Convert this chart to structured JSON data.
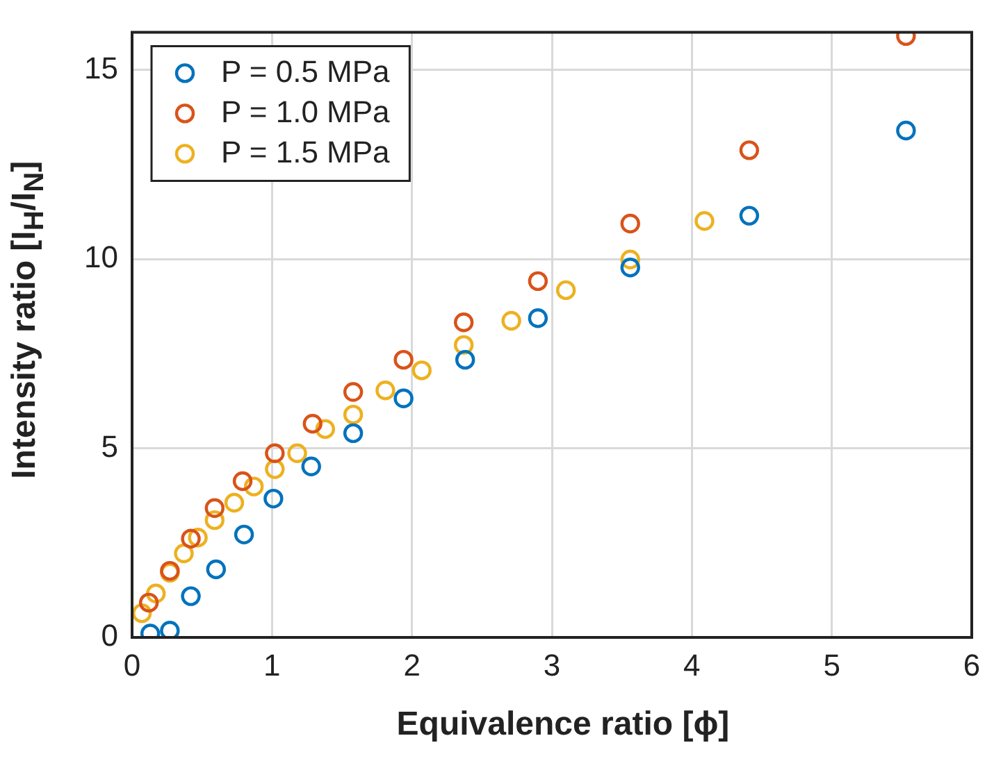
{
  "chart_data": {
    "type": "scatter",
    "xlabel": "Equivalence ratio [ϕ]",
    "ylabel": "Intensity ratio [I$_{H}$/I$_{N}$]",
    "xlim": [
      0,
      6
    ],
    "xticks": [
      0,
      1,
      2,
      3,
      4,
      5,
      6
    ],
    "ylim": [
      0,
      16
    ],
    "yticks": [
      0,
      5,
      10,
      15
    ],
    "grid": true,
    "legend": "top left",
    "marker": "circle",
    "series": [
      {
        "name": "P = 0.5 MPa",
        "color": "#0072bd",
        "x": [
          0.13,
          0.27,
          0.42,
          0.6,
          0.8,
          1.01,
          1.28,
          1.58,
          1.94,
          2.38,
          2.9,
          3.56,
          4.41,
          5.53
        ],
        "values": [
          0.1,
          0.18,
          1.09,
          1.8,
          2.72,
          3.67,
          4.52,
          5.4,
          6.32,
          7.34,
          8.44,
          9.78,
          11.15,
          13.4
        ]
      },
      {
        "name": "P = 1.0 MPa",
        "color": "#d95319",
        "x": [
          0.12,
          0.27,
          0.42,
          0.59,
          0.79,
          1.02,
          1.29,
          1.58,
          1.94,
          2.37,
          2.9,
          3.56,
          4.41,
          5.53
        ],
        "values": [
          0.92,
          1.76,
          2.61,
          3.42,
          4.13,
          4.87,
          5.65,
          6.49,
          7.34,
          8.33,
          9.42,
          10.94,
          12.88,
          15.9
        ]
      },
      {
        "name": "P = 1.5 MPa",
        "color": "#edb120",
        "x": [
          0.07,
          0.17,
          0.27,
          0.37,
          0.47,
          0.59,
          0.73,
          0.87,
          1.02,
          1.18,
          1.38,
          1.58,
          1.81,
          2.07,
          2.37,
          2.71,
          3.1,
          3.56,
          4.09
        ],
        "values": [
          0.64,
          1.16,
          1.71,
          2.22,
          2.64,
          3.1,
          3.56,
          3.99,
          4.45,
          4.87,
          5.51,
          5.89,
          6.53,
          7.06,
          7.73,
          8.37,
          9.18,
          9.99,
          11.01
        ]
      }
    ]
  }
}
